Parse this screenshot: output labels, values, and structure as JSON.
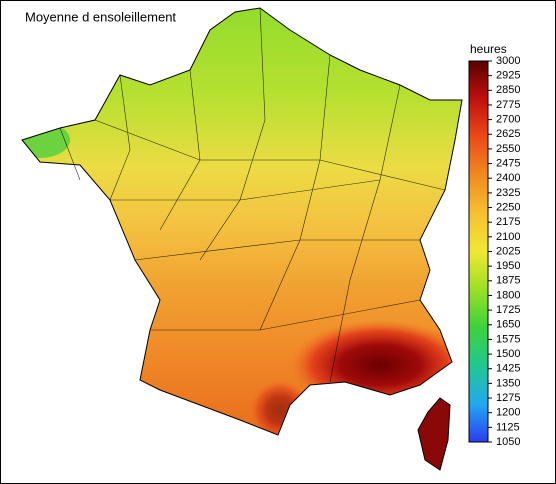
{
  "title": "Moyenne d ensoleillement",
  "colorbar": {
    "label": "heures",
    "range": [
      1050,
      3000
    ],
    "ticks": [
      1050,
      1125,
      1200,
      1275,
      1350,
      1425,
      1500,
      1575,
      1650,
      1725,
      1800,
      1875,
      1950,
      2025,
      2100,
      2175,
      2250,
      2325,
      2400,
      2475,
      2550,
      2625,
      2700,
      2775,
      2850,
      2925,
      3000
    ],
    "colors": [
      "#2b3cf0",
      "#23a8f0",
      "#20c890",
      "#3cd23c",
      "#9be024",
      "#f0e832",
      "#f8c030",
      "#f08a20",
      "#ec4a18",
      "#c0100e",
      "#5a0000"
    ]
  }
}
